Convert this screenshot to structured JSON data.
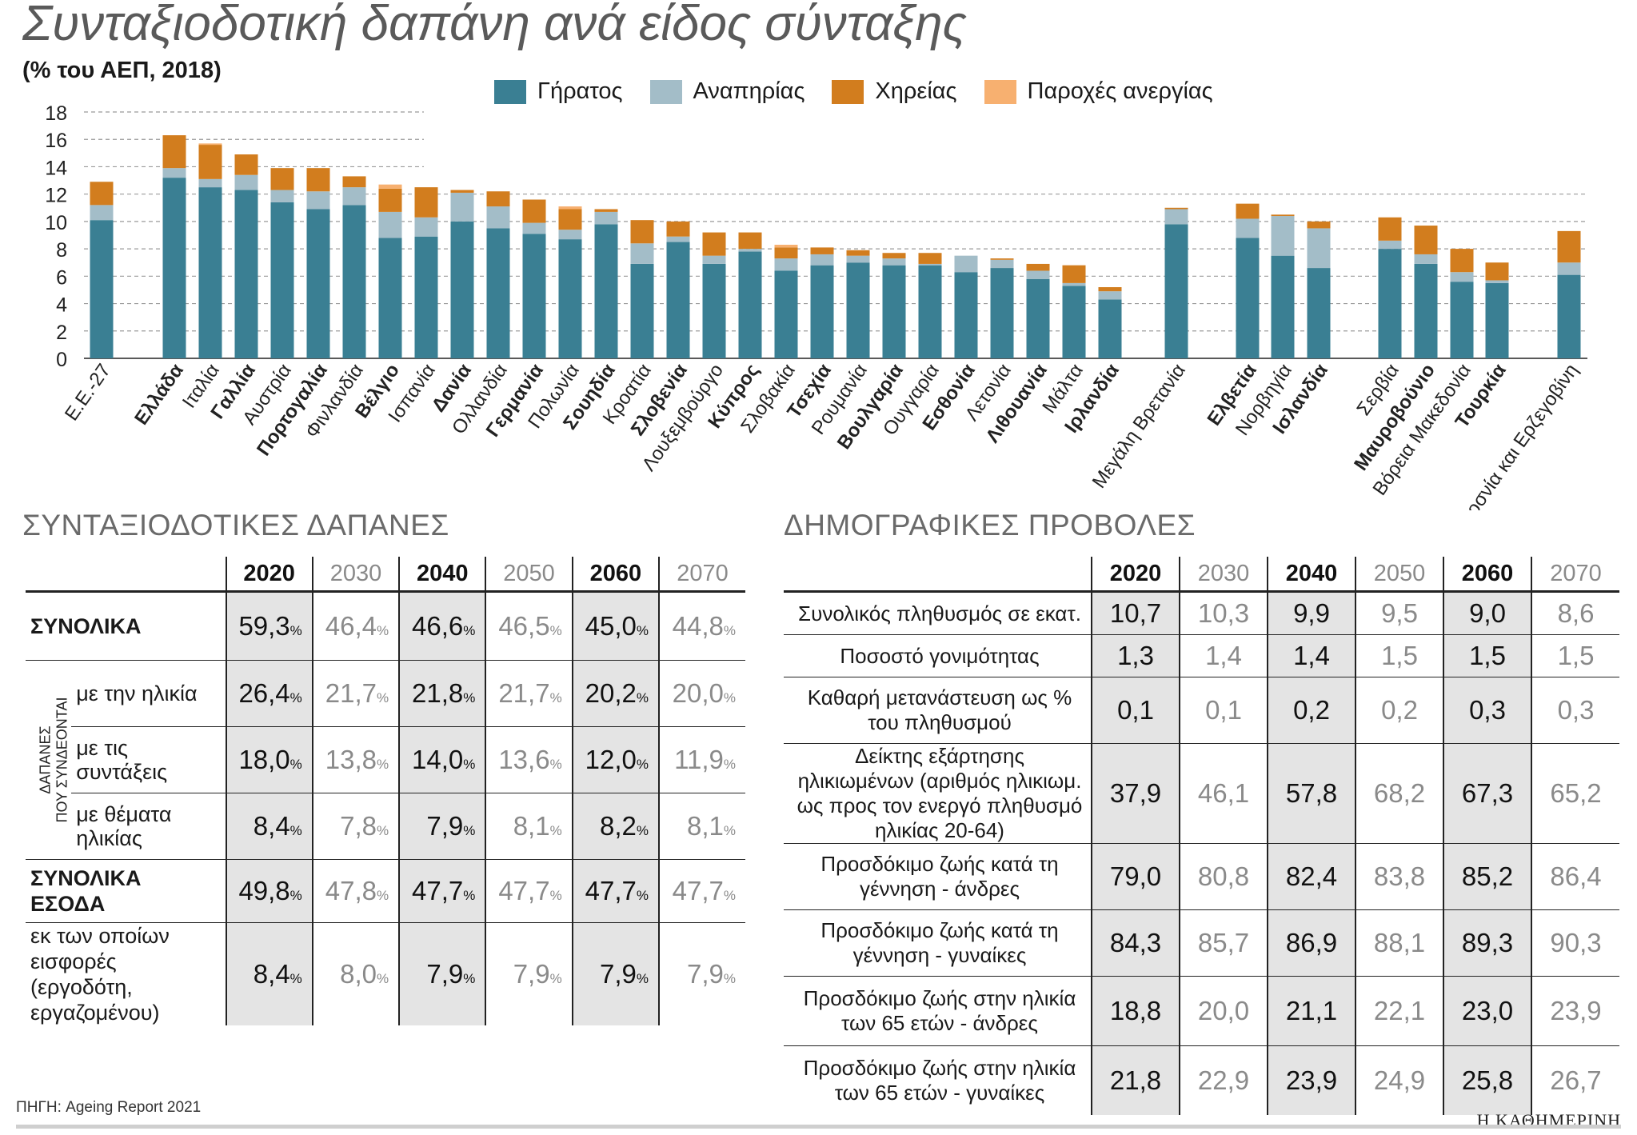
{
  "title": "Συνταξιοδοτική δαπάνη ανά είδος σύνταξης",
  "subtitle": "(% του ΑΕΠ, 2018)",
  "colors": {
    "old_age": "#3a7f93",
    "disability": "#a3bdc8",
    "survivors": "#d27d1e",
    "unemployment": "#f7b070"
  },
  "chart_data": {
    "type": "bar",
    "stacked": true,
    "ylim": [
      0,
      18
    ],
    "yticks": [
      "0",
      "2",
      "4",
      "6",
      "8",
      "10",
      "12",
      "14",
      "16",
      "18"
    ],
    "grid": true,
    "legend": "top",
    "series": [
      {
        "name": "Γήρατος",
        "color": "#3a7f93",
        "values": [
          10.1,
          13.2,
          12.5,
          12.3,
          11.4,
          10.9,
          11.2,
          8.8,
          8.9,
          10.0,
          9.5,
          9.1,
          8.7,
          9.8,
          6.9,
          8.5,
          6.9,
          7.8,
          6.4,
          6.8,
          7.0,
          6.8,
          6.8,
          6.3,
          6.6,
          5.8,
          5.3,
          4.3,
          9.8,
          8.8,
          7.5,
          6.6,
          8.0,
          6.9,
          5.6,
          5.5,
          6.1
        ]
      },
      {
        "name": "Αναπηρίας",
        "color": "#a3bdc8",
        "values": [
          1.1,
          0.7,
          0.6,
          1.1,
          0.9,
          1.3,
          1.3,
          1.9,
          1.4,
          2.1,
          1.6,
          0.8,
          0.7,
          0.9,
          1.5,
          0.4,
          0.6,
          0.2,
          0.9,
          0.8,
          0.5,
          0.5,
          0.1,
          1.2,
          0.6,
          0.6,
          0.2,
          0.6,
          1.1,
          1.4,
          2.9,
          2.9,
          0.6,
          0.7,
          0.7,
          0.2,
          0.9
        ]
      },
      {
        "name": "Χηρείας",
        "color": "#d27d1e",
        "values": [
          1.7,
          2.4,
          2.5,
          1.5,
          1.6,
          1.7,
          0.8,
          1.7,
          2.2,
          0.2,
          1.1,
          1.7,
          1.5,
          0.2,
          1.7,
          1.1,
          1.7,
          1.2,
          0.8,
          0.5,
          0.4,
          0.4,
          0.8,
          0.0,
          0.1,
          0.5,
          1.3,
          0.3,
          0.1,
          1.1,
          0.1,
          0.5,
          1.7,
          2.1,
          1.7,
          1.3,
          2.3
        ]
      },
      {
        "name": "Παροχές ανεργίας",
        "color": "#f7b070",
        "values": [
          0.0,
          0.0,
          0.1,
          0.0,
          0.0,
          0.0,
          0.0,
          0.3,
          0.0,
          0.0,
          0.0,
          0.0,
          0.2,
          0.0,
          0.0,
          0.0,
          0.0,
          0.0,
          0.2,
          0.0,
          0.0,
          0.0,
          0.0,
          0.0,
          0.0,
          0.0,
          0.0,
          0.0,
          0.0,
          0.0,
          0.0,
          0.0,
          0.0,
          0.0,
          0.0,
          0.0,
          0.0
        ]
      }
    ],
    "categories": [
      {
        "label": "Ε.Ε.-27",
        "bold": false
      },
      {
        "label": "Ελλάδα",
        "bold": true
      },
      {
        "label": "Ιταλία",
        "bold": false
      },
      {
        "label": "Γαλλία",
        "bold": true
      },
      {
        "label": "Αυστρία",
        "bold": false
      },
      {
        "label": "Πορτογαλία",
        "bold": true
      },
      {
        "label": "Φινλανδία",
        "bold": false
      },
      {
        "label": "Βέλγιο",
        "bold": true
      },
      {
        "label": "Ισπανία",
        "bold": false
      },
      {
        "label": "Δανία",
        "bold": true
      },
      {
        "label": "Ολλανδία",
        "bold": false
      },
      {
        "label": "Γερμανία",
        "bold": true
      },
      {
        "label": "Πολωνία",
        "bold": false
      },
      {
        "label": "Σουηδία",
        "bold": true
      },
      {
        "label": "Κροατία",
        "bold": false
      },
      {
        "label": "Σλοβενία",
        "bold": true
      },
      {
        "label": "Λουξεμβούργο",
        "bold": false
      },
      {
        "label": "Κύπρος",
        "bold": true
      },
      {
        "label": "Σλοβακία",
        "bold": false
      },
      {
        "label": "Τσεχία",
        "bold": true
      },
      {
        "label": "Ρουμανία",
        "bold": false
      },
      {
        "label": "Βουλγαρία",
        "bold": true
      },
      {
        "label": "Ουγγαρία",
        "bold": false
      },
      {
        "label": "Εσθονία",
        "bold": true
      },
      {
        "label": "Λετονία",
        "bold": false
      },
      {
        "label": "Λιθουανία",
        "bold": true
      },
      {
        "label": "Μάλτα",
        "bold": false
      },
      {
        "label": "Ιρλανδία",
        "bold": true
      },
      {
        "label": "Μεγάλη Βρετανία",
        "bold": false
      },
      {
        "label": "Ελβετία",
        "bold": true
      },
      {
        "label": "Νορβηγία",
        "bold": false
      },
      {
        "label": "Ισλανδία",
        "bold": true
      },
      {
        "label": "Σερβία",
        "bold": false
      },
      {
        "label": "Μαυροβούνιο",
        "bold": true
      },
      {
        "label": "Βόρεια Μακεδονία",
        "bold": false
      },
      {
        "label": "Τουρκία",
        "bold": true
      },
      {
        "label": "Βοσνία και Ερζεγοβίνη",
        "bold": false
      }
    ]
  },
  "pension": {
    "title": "ΣΥΝΤΑΞΙΟΔΟΤΙΚΕΣ ΔΑΠΑΝΕΣ",
    "years": [
      "2020",
      "2030",
      "2040",
      "2050",
      "2060",
      "2070"
    ],
    "unit": "%",
    "group_label_1": "ΔΑΠΑΝΕΣ",
    "group_label_2": "ΠΟΥ ΣΥΝΔΕΟΝΤΑΙ",
    "rows": [
      {
        "label": "ΣΥΝΟΛΙΚΑ",
        "bold": true,
        "values": [
          "59,3",
          "46,4",
          "46,6",
          "46,5",
          "45,0",
          "44,8"
        ]
      },
      {
        "label": "με την ηλικία",
        "indent": true,
        "values": [
          "26,4",
          "21,7",
          "21,8",
          "21,7",
          "20,2",
          "20,0"
        ]
      },
      {
        "label": "με τις συντάξεις",
        "indent": true,
        "values": [
          "18,0",
          "13,8",
          "14,0",
          "13,6",
          "12,0",
          "11,9"
        ]
      },
      {
        "label": "με θέματα ηλικίας",
        "indent": true,
        "values": [
          "8,4",
          "7,8",
          "7,9",
          "8,1",
          "8,2",
          "8,1"
        ]
      },
      {
        "label": "ΣΥΝΟΛΙΚΑ ΕΣΟΔΑ",
        "bold": true,
        "values": [
          "49,8",
          "47,8",
          "47,7",
          "47,7",
          "47,7",
          "47,7"
        ]
      },
      {
        "label": "εκ των οποίων εισφορές (εργοδότη, εργαζομένου)",
        "values": [
          "8,4",
          "8,0",
          "7,9",
          "7,9",
          "7,9",
          "7,9"
        ]
      }
    ]
  },
  "demo": {
    "title": "ΔΗΜΟΓΡΑΦΙΚΕΣ ΠΡΟΒΟΛΕΣ",
    "years": [
      "2020",
      "2030",
      "2040",
      "2050",
      "2060",
      "2070"
    ],
    "rows": [
      {
        "label": "Συνολικός πληθυσμός σε εκατ.",
        "values": [
          "10,7",
          "10,3",
          "9,9",
          "9,5",
          "9,0",
          "8,6"
        ]
      },
      {
        "label": "Ποσοστό γονιμότητας",
        "values": [
          "1,3",
          "1,4",
          "1,4",
          "1,5",
          "1,5",
          "1,5"
        ]
      },
      {
        "label": "Καθαρή μετανάστευση ως % του πληθυσμού",
        "values": [
          "0,1",
          "0,1",
          "0,2",
          "0,2",
          "0,3",
          "0,3"
        ]
      },
      {
        "label": "Δείκτης εξάρτησης ηλικιωμένων (αριθμός ηλικιωμ. ως προς τον ενεργό πληθυσμό ηλικίας 20-64)",
        "values": [
          "37,9",
          "46,1",
          "57,8",
          "68,2",
          "67,3",
          "65,2"
        ]
      },
      {
        "label": "Προσδόκιμο ζωής κατά τη γέννηση - άνδρες",
        "values": [
          "79,0",
          "80,8",
          "82,4",
          "83,8",
          "85,2",
          "86,4"
        ]
      },
      {
        "label": "Προσδόκιμο ζωής κατά τη γέννηση - γυναίκες",
        "values": [
          "84,3",
          "85,7",
          "86,9",
          "88,1",
          "89,3",
          "90,3"
        ]
      },
      {
        "label": "Προσδόκιμο ζωής στην ηλικία των 65 ετών - άνδρες",
        "values": [
          "18,8",
          "20,0",
          "21,1",
          "22,1",
          "23,0",
          "23,9"
        ]
      },
      {
        "label": "Προσδόκιμο ζωής στην ηλικία των 65 ετών - γυναίκες",
        "values": [
          "21,8",
          "22,9",
          "23,9",
          "24,9",
          "25,8",
          "26,7"
        ]
      }
    ]
  },
  "source": "ΠΗΓΗ: Ageing Report 2021",
  "brand": "Η ΚΑΘΗΜΕΡΙΝΗ"
}
